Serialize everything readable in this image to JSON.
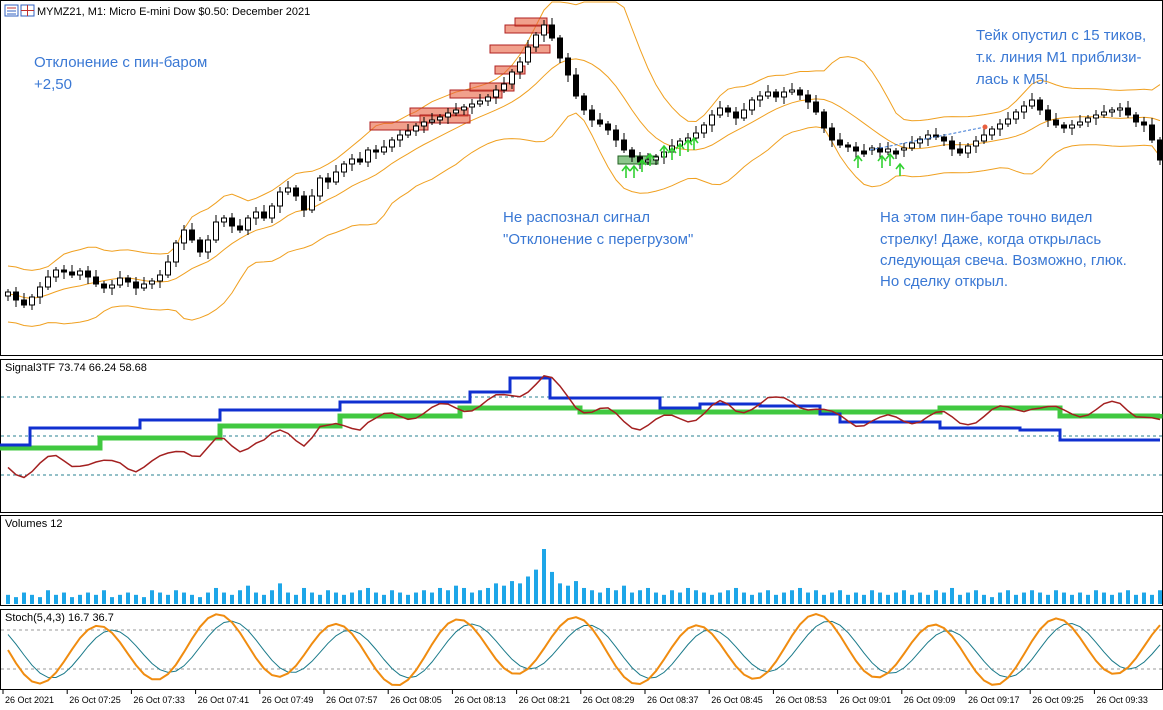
{
  "colors": {
    "bullish_body": "#ffffff",
    "bearish_body": "#000000",
    "bollinger": "#f0a020",
    "signal_red": "#a32020",
    "signal_blue": "#1030d0",
    "signal_green": "#40c840",
    "volume": "#1ea6e8",
    "stoch_main": "#f08c10",
    "stoch_signal": "#1a7a8a",
    "annotation": "#3a78d4",
    "pinbar_fill": "#e86040",
    "arrow_green": "#30d030"
  },
  "main_panel": {
    "title": "MYMZ21, M1:  Micro E-mini Dow $0.50: December 2021",
    "icons": [
      "window-list-icon",
      "grid-view-icon"
    ],
    "annotations": [
      {
        "id": "note-pinbar",
        "lines": [
          "Отклонение с пин-баром",
          "+2,50"
        ]
      },
      {
        "id": "note-overload",
        "lines": [
          "Не распознал сигнал",
          "\"Отклонение с перегрузом\""
        ]
      },
      {
        "id": "note-take",
        "lines": [
          "Тейк опустил с 15 тиков,",
          "т.к. линия М1 приблизи-",
          "лась к М5!"
        ]
      },
      {
        "id": "note-arrow",
        "lines": [
          "На этом пин-баре точно видел",
          "стрелку! Даже, когда открылась",
          "следующая свеча. Возможно, глюк.",
          "Но сделку открыл."
        ]
      }
    ]
  },
  "signal_panel": {
    "title": "Signal3TF 73.74 66.24 58.68"
  },
  "volume_panel": {
    "title": "Volumes 12"
  },
  "stoch_panel": {
    "title": "Stoch(5,4,3) 16.7 36.7"
  },
  "time_axis": {
    "labels": [
      "26 Oct 2021",
      "26 Oct 07:25",
      "26 Oct 07:33",
      "26 Oct 07:41",
      "26 Oct 07:49",
      "26 Oct 07:57",
      "26 Oct 08:05",
      "26 Oct 08:13",
      "26 Oct 08:21",
      "26 Oct 08:29",
      "26 Oct 08:37",
      "26 Oct 08:45",
      "26 Oct 08:53",
      "26 Oct 09:01",
      "26 Oct 09:09",
      "26 Oct 09:17",
      "26 Oct 09:25",
      "26 Oct 09:33"
    ]
  },
  "chart_data": {
    "type": "candlestick",
    "bars": 145,
    "candles_close_path": [
      292,
      300,
      305,
      297,
      287,
      277,
      270,
      272,
      275,
      271,
      277,
      284,
      288,
      285,
      278,
      282,
      288,
      284,
      281,
      275,
      262,
      243,
      230,
      240,
      252,
      240,
      222,
      218,
      226,
      230,
      218,
      212,
      218,
      206,
      192,
      188,
      196,
      210,
      196,
      178,
      182,
      172,
      164,
      159,
      162,
      150,
      152,
      147,
      140,
      135,
      131,
      126,
      122,
      120,
      117,
      113,
      110,
      107,
      104,
      101,
      97,
      90,
      84,
      72,
      62,
      47,
      35,
      25,
      38,
      58,
      75,
      96,
      110,
      120,
      124,
      130,
      140,
      150,
      157,
      162,
      160,
      157,
      152,
      146,
      141,
      138,
      133,
      125,
      115,
      108,
      112,
      118,
      110,
      100,
      96,
      92,
      97,
      92,
      90,
      95,
      102,
      112,
      128,
      140,
      145,
      147,
      151,
      150,
      148,
      152,
      151,
      150,
      148,
      143,
      139,
      135,
      137,
      141,
      149,
      153,
      146,
      141,
      135,
      129,
      124,
      119,
      112,
      106,
      100,
      110,
      120,
      125,
      128,
      125,
      122,
      118,
      115,
      112,
      110,
      108,
      115,
      122,
      125,
      140,
      160
    ],
    "volume_values": [
      4,
      3,
      5,
      4,
      3,
      6,
      4,
      5,
      3,
      4,
      5,
      4,
      6,
      3,
      4,
      5,
      4,
      3,
      6,
      5,
      4,
      6,
      5,
      4,
      3,
      5,
      7,
      5,
      4,
      6,
      8,
      5,
      4,
      6,
      9,
      5,
      4,
      7,
      5,
      4,
      6,
      5,
      4,
      5,
      6,
      7,
      5,
      4,
      6,
      5,
      4,
      5,
      6,
      5,
      7,
      6,
      8,
      7,
      5,
      6,
      7,
      9,
      8,
      10,
      9,
      12,
      15,
      24,
      14,
      9,
      8,
      10,
      7,
      6,
      5,
      7,
      6,
      8,
      5,
      6,
      7,
      5,
      4,
      6,
      5,
      7,
      6,
      5,
      4,
      5,
      6,
      7,
      5,
      4,
      5,
      6,
      4,
      5,
      6,
      7,
      5,
      6,
      4,
      5,
      6,
      4,
      5,
      4,
      6,
      5,
      4,
      5,
      6,
      4,
      5,
      4,
      6,
      5,
      7,
      4,
      5,
      6,
      4,
      3,
      5,
      6,
      4,
      5,
      6,
      5,
      4,
      6,
      5,
      4,
      5,
      4,
      6,
      5,
      4,
      5,
      6,
      4,
      5,
      4,
      6
    ]
  }
}
